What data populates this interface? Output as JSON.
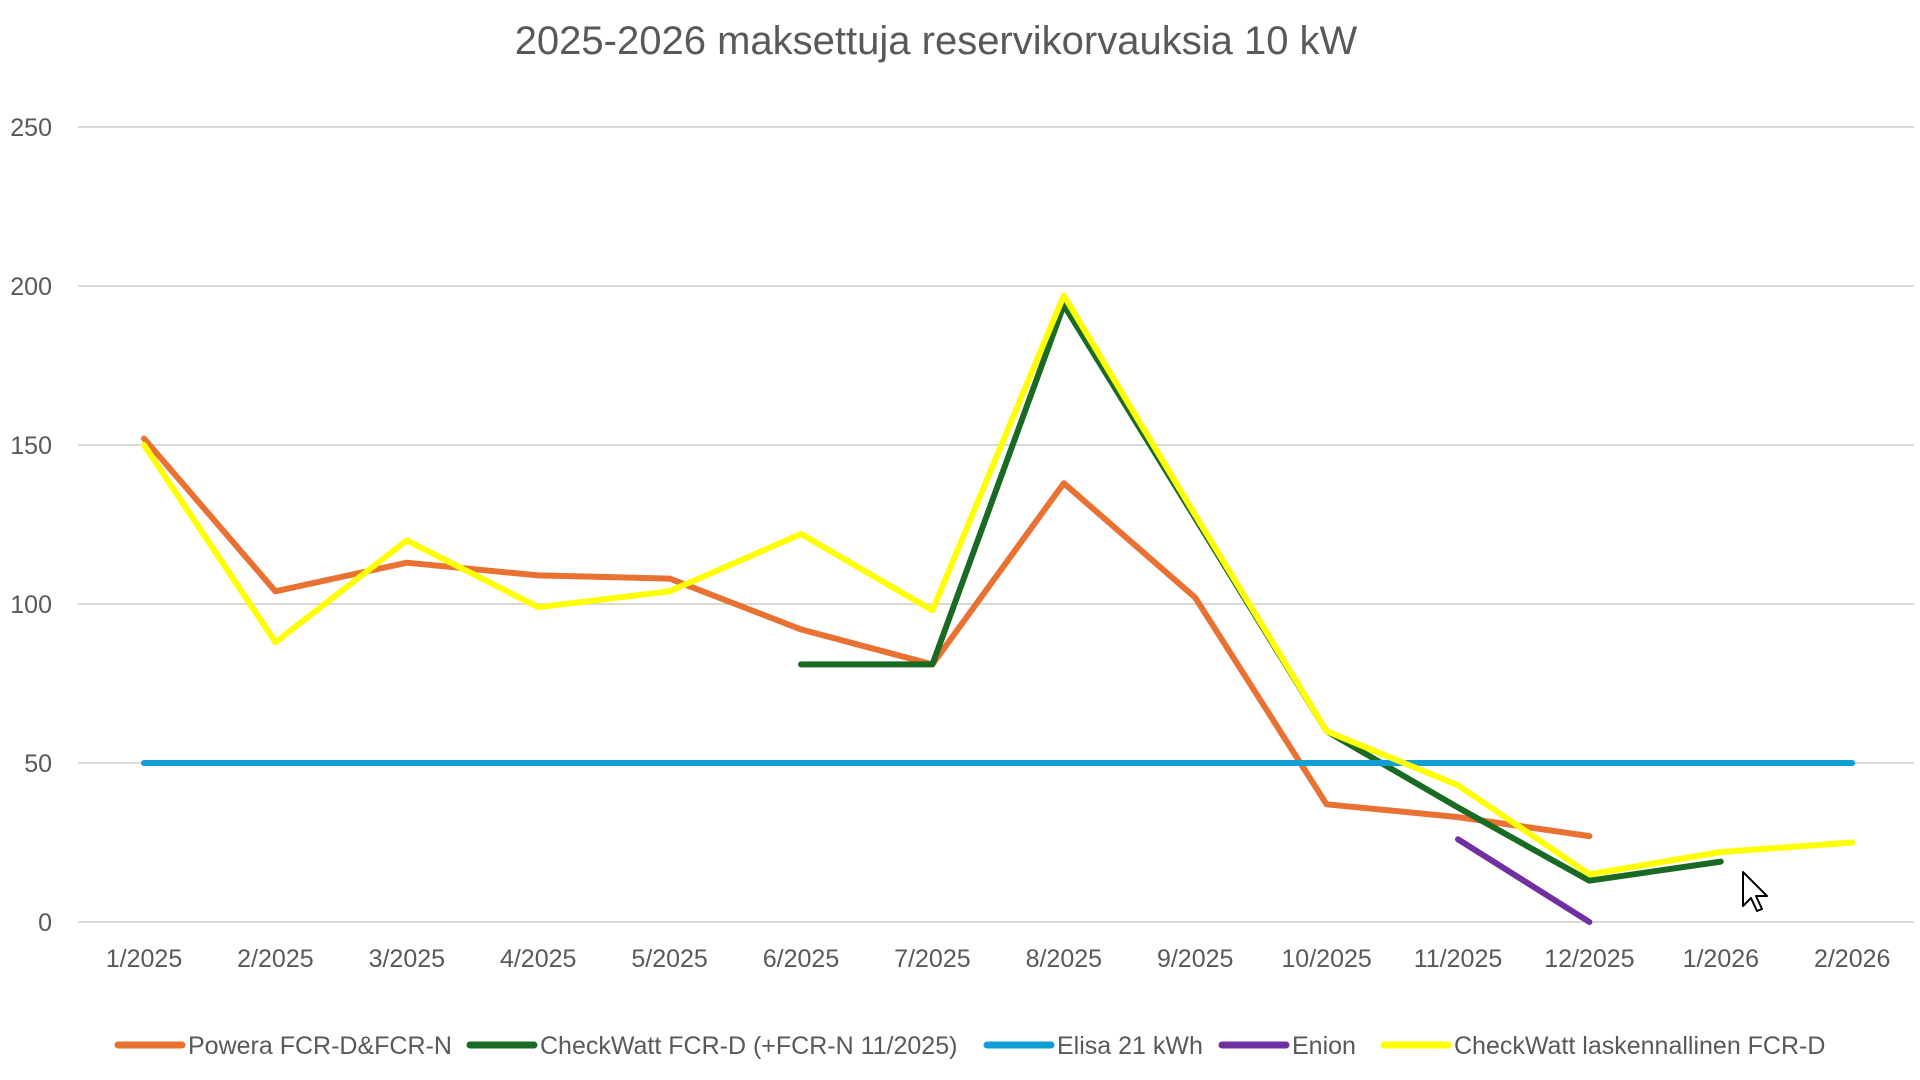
{
  "chart_data": {
    "type": "line",
    "title": "2025-2026 maksettuja reservikorvauksia 10 kW",
    "xlabel": "",
    "ylabel": "",
    "ylim": [
      0,
      250
    ],
    "yticks": [
      0,
      50,
      100,
      150,
      200,
      250
    ],
    "grid": true,
    "legend_position": "bottom",
    "categories": [
      "1/2025",
      "2/2025",
      "3/2025",
      "4/2025",
      "5/2025",
      "6/2025",
      "7/2025",
      "8/2025",
      "9/2025",
      "10/2025",
      "11/2025",
      "12/2025",
      "1/2026",
      "2/2026"
    ],
    "series": [
      {
        "name": "Powera FCR-D&FCR-N",
        "color": "#E97132",
        "values": [
          152,
          104,
          113,
          109,
          108,
          92,
          81,
          138,
          102,
          37,
          33,
          27,
          null,
          null
        ]
      },
      {
        "name": "CheckWatt FCR-D (+FCR-N 11/2025)",
        "color": "#196B24",
        "values": [
          null,
          null,
          null,
          null,
          null,
          81,
          81,
          194,
          127,
          60,
          36,
          13,
          19,
          null
        ]
      },
      {
        "name": "Elisa 21 kWh",
        "color": "#0F9ED5",
        "values": [
          50,
          50,
          50,
          50,
          50,
          50,
          50,
          50,
          50,
          50,
          50,
          50,
          50,
          50
        ]
      },
      {
        "name": "Enion",
        "color": "#7030A0",
        "values": [
          null,
          null,
          null,
          null,
          null,
          null,
          null,
          null,
          null,
          null,
          26,
          0,
          null,
          null
        ]
      },
      {
        "name": "CheckWatt laskennallinen FCR-D",
        "color": "#FFFF00",
        "values": [
          150,
          88,
          120,
          99,
          104,
          122,
          98,
          197,
          128,
          60,
          43,
          15,
          22,
          25
        ]
      }
    ]
  }
}
